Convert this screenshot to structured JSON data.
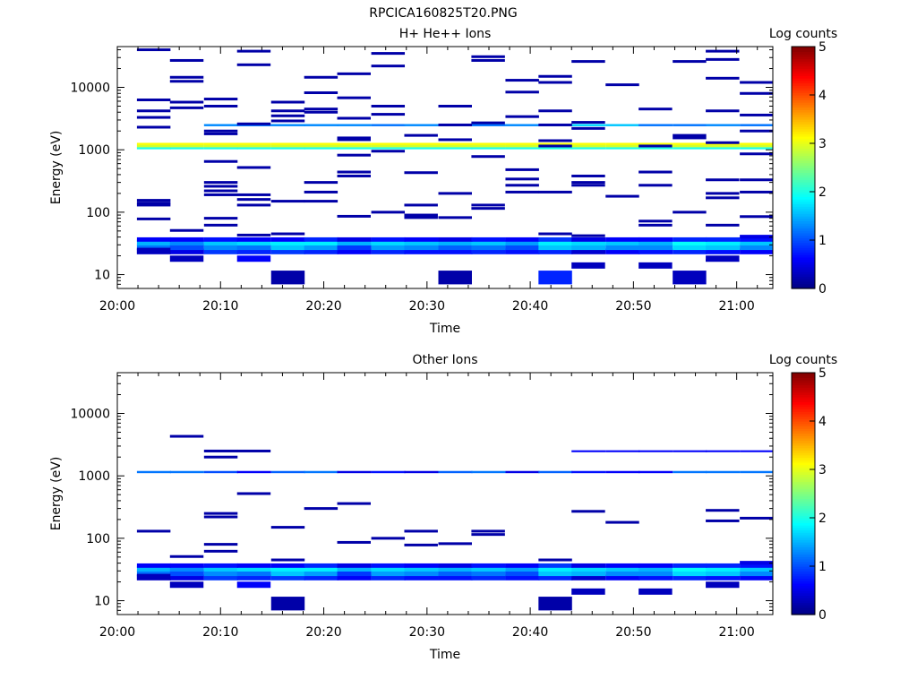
{
  "title": "RPCICA160825T20.PNG",
  "chart_data": [
    {
      "type": "heatmap",
      "title": "H+ He++ Ions",
      "xlabel": "Time",
      "ylabel": "Energy (eV)",
      "colorbar_label": "Log counts",
      "colorbar_ticks": [
        "0",
        "1",
        "2",
        "3",
        "4",
        "5"
      ],
      "colorbar_range": [
        0,
        5
      ],
      "yscale": "log",
      "ylim": [
        6,
        45000
      ],
      "y_ticks": [
        {
          "v": 10,
          "label": "10"
        },
        {
          "v": 100,
          "label": "100"
        },
        {
          "v": 1000,
          "label": "1000"
        },
        {
          "v": 10000,
          "label": "10000"
        }
      ],
      "x_ticks": [
        {
          "v": 0,
          "label": "20:00"
        },
        {
          "v": 10,
          "label": "20:10"
        },
        {
          "v": 20,
          "label": "20:20"
        },
        {
          "v": 30,
          "label": "20:30"
        },
        {
          "v": 40,
          "label": "20:40"
        },
        {
          "v": 50,
          "label": "20:50"
        },
        {
          "v": 60,
          "label": "21:00"
        }
      ],
      "xlim_minutes_after_2000": [
        0,
        63.5
      ],
      "time_bin_start_minutes": [
        1.9,
        5.1,
        8.4,
        11.6,
        14.9,
        18.1,
        21.3,
        24.6,
        27.8,
        31.1,
        34.3,
        37.6,
        40.8,
        44.0,
        47.3,
        50.5,
        53.8,
        57.0,
        60.3
      ],
      "time_bin_width_minutes": 3.25,
      "rows": [
        {
          "e": 23.5,
          "h": 0.09,
          "v": [
            0.4,
            0.5,
            0.9,
            0.8,
            0.9,
            0.8,
            0.6,
            0.8,
            0.7,
            0.7,
            0.8,
            0.7,
            0.8,
            0.4,
            0.6,
            0.7,
            0.8,
            0.7,
            0.6
          ]
        },
        {
          "e": 27.5,
          "h": 0.09,
          "v": [
            1.2,
            1.0,
            1.3,
            1.2,
            1.6,
            1.4,
            0.9,
            1.4,
            1.3,
            1.1,
            1.2,
            1.0,
            1.6,
            1.5,
            1.3,
            1.3,
            1.7,
            1.6,
            1.3
          ]
        },
        {
          "e": 32.5,
          "h": 0.09,
          "v": [
            1.5,
            1.3,
            1.6,
            1.7,
            1.8,
            1.8,
            1.5,
            1.7,
            1.6,
            1.5,
            1.6,
            1.4,
            1.8,
            1.7,
            1.6,
            1.5,
            1.9,
            1.8,
            1.6
          ]
        },
        {
          "e": 36.5,
          "h": 0.07,
          "v": [
            0.6,
            0.6,
            0.7,
            0.6,
            0.6,
            0.8,
            0.5,
            0.7,
            0.6,
            0.5,
            0.7,
            0.6,
            0.9,
            0.5,
            0.6,
            0.6,
            0.8,
            0.8,
            0.7
          ]
        },
        {
          "e": 40.5,
          "h": 0.06,
          "v": [
            null,
            null,
            null,
            null,
            null,
            null,
            null,
            null,
            null,
            null,
            null,
            null,
            null,
            null,
            null,
            null,
            null,
            null,
            0.5
          ]
        },
        {
          "e": 1060,
          "h": 0.035,
          "v": [
            2.0,
            2.0,
            2.0,
            2.0,
            2.0,
            2.0,
            2.0,
            2.0,
            2.0,
            2.0,
            2.0,
            2.0,
            2.0,
            2.0,
            2.0,
            2.0,
            2.0,
            2.0,
            2.0
          ]
        },
        {
          "e": 1150,
          "h": 0.04,
          "v": [
            2.9,
            2.9,
            2.9,
            2.9,
            2.9,
            2.9,
            2.9,
            2.9,
            2.9,
            2.9,
            2.9,
            2.9,
            2.9,
            2.9,
            2.9,
            2.9,
            2.9,
            2.9,
            2.9
          ]
        },
        {
          "e": 1240,
          "h": 0.035,
          "v": [
            3.1,
            3.1,
            3.1,
            3.1,
            3.1,
            3.1,
            3.1,
            3.1,
            3.1,
            3.1,
            3.1,
            3.1,
            3.1,
            3.1,
            3.1,
            3.1,
            3.1,
            3.1,
            3.1
          ]
        },
        {
          "e": 2480,
          "h": 0.035,
          "v": [
            null,
            null,
            1.3,
            1.2,
            1.3,
            1.3,
            1.3,
            1.2,
            1.3,
            1.4,
            1.2,
            1.3,
            1.3,
            1.7,
            1.6,
            1.2,
            1.2,
            1.3,
            1.2
          ]
        },
        {
          "e": 5.2,
          "h": 0.0,
          "v": []
        }
      ],
      "sparse_marks": [
        [
          0,
          40000
        ],
        [
          0,
          6300
        ],
        [
          0,
          4200
        ],
        [
          0,
          3300
        ],
        [
          0,
          2300
        ],
        [
          0,
          155
        ],
        [
          0,
          140
        ],
        [
          0,
          130
        ],
        [
          0,
          78
        ],
        [
          1,
          27000
        ],
        [
          1,
          14500
        ],
        [
          1,
          12500
        ],
        [
          1,
          5800
        ],
        [
          1,
          4700
        ],
        [
          1,
          51
        ],
        [
          2,
          6500
        ],
        [
          2,
          5000
        ],
        [
          2,
          2000
        ],
        [
          2,
          1800
        ],
        [
          2,
          650
        ],
        [
          2,
          300
        ],
        [
          2,
          260
        ],
        [
          2,
          220
        ],
        [
          2,
          190
        ],
        [
          2,
          80
        ],
        [
          2,
          62
        ],
        [
          3,
          38000
        ],
        [
          3,
          23000
        ],
        [
          3,
          2600
        ],
        [
          3,
          520
        ],
        [
          3,
          190
        ],
        [
          3,
          160
        ],
        [
          3,
          130
        ],
        [
          3,
          43
        ],
        [
          4,
          5800
        ],
        [
          4,
          4200
        ],
        [
          4,
          3500
        ],
        [
          4,
          2900
        ],
        [
          4,
          150
        ],
        [
          4,
          45
        ],
        [
          5,
          14500
        ],
        [
          5,
          8200
        ],
        [
          5,
          4500
        ],
        [
          5,
          4000
        ],
        [
          5,
          300
        ],
        [
          5,
          210
        ],
        [
          5,
          150
        ],
        [
          6,
          16500
        ],
        [
          6,
          6800
        ],
        [
          6,
          3200
        ],
        [
          6,
          1550
        ],
        [
          6,
          1450
        ],
        [
          6,
          820
        ],
        [
          6,
          440
        ],
        [
          6,
          380
        ],
        [
          6,
          86
        ],
        [
          7,
          35000
        ],
        [
          7,
          22000
        ],
        [
          7,
          5000
        ],
        [
          7,
          3700
        ],
        [
          7,
          950
        ],
        [
          7,
          100
        ],
        [
          8,
          1700
        ],
        [
          8,
          430
        ],
        [
          8,
          130
        ],
        [
          8,
          90
        ],
        [
          8,
          82
        ],
        [
          9,
          5000
        ],
        [
          9,
          2500
        ],
        [
          9,
          1450
        ],
        [
          9,
          200
        ],
        [
          9,
          82
        ],
        [
          10,
          31000
        ],
        [
          10,
          27000
        ],
        [
          10,
          2700
        ],
        [
          10,
          780
        ],
        [
          10,
          130
        ],
        [
          10,
          115
        ],
        [
          11,
          13000
        ],
        [
          11,
          8400
        ],
        [
          11,
          3400
        ],
        [
          11,
          480
        ],
        [
          11,
          340
        ],
        [
          11,
          270
        ],
        [
          11,
          210
        ],
        [
          12,
          15000
        ],
        [
          12,
          12000
        ],
        [
          12,
          4200
        ],
        [
          12,
          2500
        ],
        [
          12,
          1400
        ],
        [
          12,
          1150
        ],
        [
          12,
          210
        ],
        [
          12,
          45
        ],
        [
          13,
          26000
        ],
        [
          13,
          2750
        ],
        [
          13,
          2200
        ],
        [
          13,
          380
        ],
        [
          13,
          300
        ],
        [
          13,
          270
        ],
        [
          13,
          42
        ],
        [
          14,
          11000
        ],
        [
          14,
          180
        ],
        [
          15,
          4500
        ],
        [
          15,
          1150
        ],
        [
          15,
          440
        ],
        [
          15,
          270
        ],
        [
          15,
          72
        ],
        [
          15,
          62
        ],
        [
          16,
          26000
        ],
        [
          16,
          1700
        ],
        [
          16,
          1550
        ],
        [
          16,
          100
        ],
        [
          17,
          38000
        ],
        [
          17,
          28000
        ],
        [
          17,
          14000
        ],
        [
          17,
          4200
        ],
        [
          17,
          1300
        ],
        [
          17,
          330
        ],
        [
          17,
          200
        ],
        [
          17,
          170
        ],
        [
          17,
          62
        ],
        [
          17,
          17
        ],
        [
          18,
          12000
        ],
        [
          18,
          8000
        ],
        [
          18,
          3600
        ],
        [
          18,
          2000
        ],
        [
          18,
          860
        ],
        [
          18,
          330
        ],
        [
          18,
          210
        ],
        [
          18,
          85
        ]
      ],
      "bottom_marks": [
        {
          "bin": 0,
          "e": 24,
          "v": 0.3
        },
        {
          "bin": 1,
          "e": 18,
          "v": 0.3
        },
        {
          "bin": 3,
          "e": 18,
          "v": 0.6
        },
        {
          "bin": 4,
          "e": 9,
          "v": 0.2,
          "tall": true
        },
        {
          "bin": 9,
          "e": 9,
          "v": 0.2,
          "tall": true
        },
        {
          "bin": 12,
          "e": 9,
          "v": 0.8,
          "tall": true
        },
        {
          "bin": 13,
          "e": 14,
          "v": 0.3
        },
        {
          "bin": 15,
          "e": 14,
          "v": 0.3
        },
        {
          "bin": 16,
          "e": 9,
          "v": 0.3,
          "tall": true
        },
        {
          "bin": 17,
          "e": 18,
          "v": 0.3
        }
      ]
    },
    {
      "type": "heatmap",
      "title": "Other Ions",
      "xlabel": "Time",
      "ylabel": "Energy (eV)",
      "colorbar_label": "Log counts",
      "colorbar_ticks": [
        "0",
        "1",
        "2",
        "3",
        "4",
        "5"
      ],
      "colorbar_range": [
        0,
        5
      ],
      "yscale": "log",
      "ylim": [
        6,
        45000
      ],
      "y_ticks": [
        {
          "v": 10,
          "label": "10"
        },
        {
          "v": 100,
          "label": "100"
        },
        {
          "v": 1000,
          "label": "1000"
        },
        {
          "v": 10000,
          "label": "10000"
        }
      ],
      "x_ticks": [
        {
          "v": 0,
          "label": "20:00"
        },
        {
          "v": 10,
          "label": "20:10"
        },
        {
          "v": 20,
          "label": "20:20"
        },
        {
          "v": 30,
          "label": "20:30"
        },
        {
          "v": 40,
          "label": "20:40"
        },
        {
          "v": 50,
          "label": "20:50"
        },
        {
          "v": 60,
          "label": "21:00"
        }
      ],
      "xlim_minutes_after_2000": [
        0,
        63.5
      ],
      "time_bin_start_minutes": [
        1.9,
        5.1,
        8.4,
        11.6,
        14.9,
        18.1,
        21.3,
        24.6,
        27.8,
        31.1,
        34.3,
        37.6,
        40.8,
        44.0,
        47.3,
        50.5,
        53.8,
        57.0,
        60.3
      ],
      "time_bin_width_minutes": 3.25,
      "rows": [
        {
          "e": 23.5,
          "h": 0.09,
          "v": [
            0.4,
            0.5,
            0.9,
            0.8,
            0.9,
            0.8,
            0.6,
            0.8,
            0.7,
            0.7,
            0.8,
            0.7,
            0.8,
            0.4,
            0.6,
            0.7,
            0.8,
            0.7,
            0.6
          ]
        },
        {
          "e": 27.5,
          "h": 0.09,
          "v": [
            1.2,
            1.0,
            1.3,
            1.2,
            1.6,
            1.4,
            0.9,
            1.4,
            1.3,
            1.1,
            1.2,
            1.0,
            1.6,
            1.5,
            1.3,
            1.3,
            1.7,
            1.6,
            1.3
          ]
        },
        {
          "e": 32.5,
          "h": 0.09,
          "v": [
            1.5,
            1.3,
            1.6,
            1.7,
            1.8,
            1.8,
            1.5,
            1.7,
            1.6,
            1.5,
            1.6,
            1.4,
            1.8,
            1.7,
            1.6,
            1.5,
            1.9,
            1.8,
            1.6
          ]
        },
        {
          "e": 36.5,
          "h": 0.07,
          "v": [
            0.6,
            0.6,
            0.7,
            0.6,
            0.6,
            0.8,
            0.5,
            0.7,
            0.6,
            0.5,
            0.7,
            0.6,
            0.9,
            0.5,
            0.6,
            0.6,
            0.8,
            0.8,
            0.7
          ]
        },
        {
          "e": 40.5,
          "h": 0.06,
          "v": [
            null,
            null,
            null,
            null,
            null,
            null,
            null,
            null,
            null,
            null,
            null,
            null,
            null,
            null,
            null,
            null,
            null,
            null,
            0.5
          ]
        },
        {
          "e": 1150,
          "h": 0.035,
          "v": [
            1.2,
            1.2,
            1.0,
            0.6,
            1.1,
            1.2,
            0.5,
            0.7,
            0.5,
            1.1,
            1.2,
            0.5,
            1.1,
            0.7,
            0.6,
            0.6,
            1.2,
            1.2,
            1.2
          ]
        },
        {
          "e": 2480,
          "h": 0.03,
          "v": [
            null,
            null,
            null,
            null,
            null,
            null,
            null,
            null,
            null,
            null,
            null,
            null,
            null,
            0.6,
            0.6,
            0.6,
            0.6,
            0.6,
            0.6
          ]
        },
        {
          "e": 5.2,
          "h": 0.0,
          "v": []
        }
      ],
      "sparse_marks": [
        [
          0,
          130
        ],
        [
          1,
          4300
        ],
        [
          1,
          51
        ],
        [
          2,
          2500
        ],
        [
          2,
          2000
        ],
        [
          2,
          250
        ],
        [
          2,
          220
        ],
        [
          2,
          80
        ],
        [
          2,
          62
        ],
        [
          3,
          2500
        ],
        [
          3,
          520
        ],
        [
          4,
          150
        ],
        [
          4,
          45
        ],
        [
          5,
          300
        ],
        [
          6,
          360
        ],
        [
          6,
          86
        ],
        [
          7,
          100
        ],
        [
          8,
          130
        ],
        [
          8,
          78
        ],
        [
          9,
          82
        ],
        [
          10,
          130
        ],
        [
          10,
          115
        ],
        [
          12,
          45
        ],
        [
          13,
          270
        ],
        [
          14,
          180
        ],
        [
          17,
          280
        ],
        [
          17,
          190
        ],
        [
          18,
          210
        ]
      ],
      "bottom_marks": [
        {
          "bin": 0,
          "e": 24,
          "v": 0.3
        },
        {
          "bin": 1,
          "e": 18,
          "v": 0.3
        },
        {
          "bin": 3,
          "e": 18,
          "v": 0.6
        },
        {
          "bin": 4,
          "e": 9,
          "v": 0.2,
          "tall": true
        },
        {
          "bin": 12,
          "e": 9,
          "v": 0.2,
          "tall": true
        },
        {
          "bin": 13,
          "e": 14,
          "v": 0.3
        },
        {
          "bin": 15,
          "e": 14,
          "v": 0.3
        },
        {
          "bin": 17,
          "e": 18,
          "v": 0.3
        }
      ]
    }
  ]
}
